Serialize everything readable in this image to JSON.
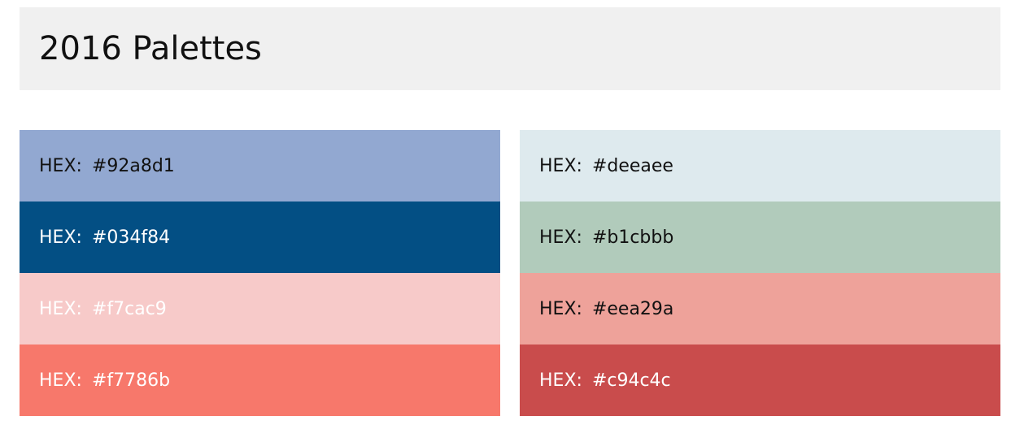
{
  "header": {
    "title": "2016 Palettes"
  },
  "palettes": [
    {
      "swatches": [
        {
          "label": "HEX:",
          "value": "#92a8d1",
          "color": "#92a8d1",
          "text_color": "#111111"
        },
        {
          "label": "HEX:",
          "value": "#034f84",
          "color": "#034f84",
          "text_color": "#ffffff"
        },
        {
          "label": "HEX:",
          "value": "#f7cac9",
          "color": "#f7cac9",
          "text_color": "#ffffff"
        },
        {
          "label": "HEX:",
          "value": "#f7786b",
          "color": "#f7786b",
          "text_color": "#ffffff"
        }
      ]
    },
    {
      "swatches": [
        {
          "label": "HEX:",
          "value": "#deeaee",
          "color": "#deeaee",
          "text_color": "#111111"
        },
        {
          "label": "HEX:",
          "value": "#b1cbbb",
          "color": "#b1cbbb",
          "text_color": "#111111"
        },
        {
          "label": "HEX:",
          "value": "#eea29a",
          "color": "#eea29a",
          "text_color": "#111111"
        },
        {
          "label": "HEX:",
          "value": "#c94c4c",
          "color": "#c94c4c",
          "text_color": "#ffffff"
        }
      ]
    }
  ]
}
